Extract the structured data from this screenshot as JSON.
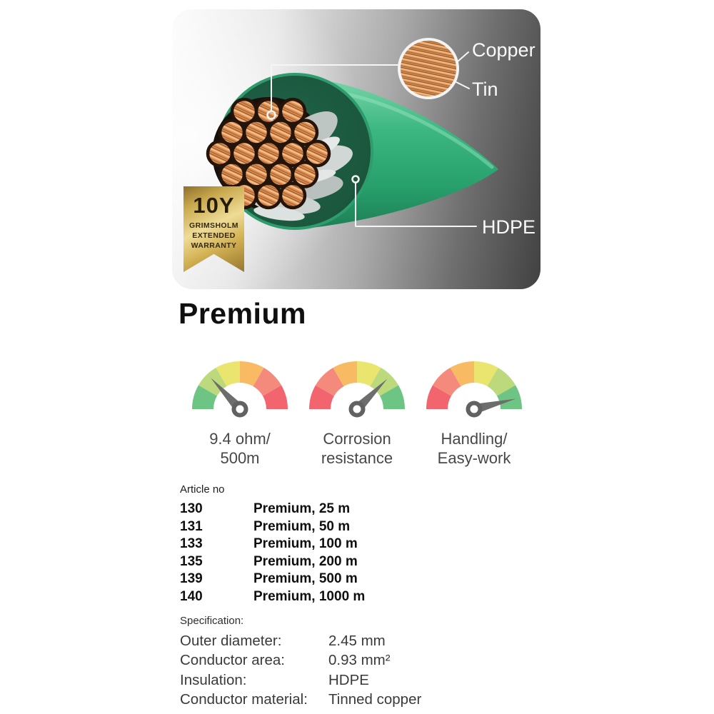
{
  "hero_card": {
    "callouts": {
      "copper": "Copper",
      "tin": "Tin",
      "hdpe": "HDPE"
    },
    "badge": {
      "years": "10Y",
      "brand": "GRIMSHOLM",
      "line2": "EXTENDED",
      "line3": "WARRANTY"
    },
    "colors": {
      "cable_green": "#35b57f",
      "cable_dark_green": "#1d5c41",
      "copper": "#e09255",
      "badge_gold": "#d3b254"
    }
  },
  "product_title": "Premium",
  "gauges": {
    "needle_color": "#6d6d6d",
    "items": [
      {
        "label_line1": "9.4 ohm/",
        "label_line2": "500m",
        "angle_deg": 133,
        "colors": [
          "#6ec482",
          "#bcd97c",
          "#eae56f",
          "#f8ba62",
          "#f48a7b",
          "#f3656e"
        ]
      },
      {
        "label_line1": "Corrosion",
        "label_line2": "resistance",
        "angle_deg": 45,
        "colors": [
          "#f3656e",
          "#f48a7b",
          "#f8ba62",
          "#eae56f",
          "#bcd97c",
          "#6ec482"
        ]
      },
      {
        "label_line1": "Handling/",
        "label_line2": "Easy-work",
        "angle_deg": 14,
        "colors": [
          "#f3656e",
          "#f48a7b",
          "#f8ba62",
          "#eae56f",
          "#bcd97c",
          "#6ec482"
        ]
      }
    ]
  },
  "articles": {
    "header": "Article no",
    "rows": [
      {
        "no": "130",
        "name": "Premium, 25 m"
      },
      {
        "no": "131",
        "name": "Premium, 50 m"
      },
      {
        "no": "133",
        "name": "Premium, 100 m"
      },
      {
        "no": "135",
        "name": "Premium, 200 m"
      },
      {
        "no": "139",
        "name": "Premium, 500 m"
      },
      {
        "no": "140",
        "name": "Premium, 1000 m"
      }
    ]
  },
  "specification": {
    "header": "Specification:",
    "rows": [
      {
        "label": "Outer diameter:",
        "value": "2.45 mm"
      },
      {
        "label": "Conductor area:",
        "value": "0.93 mm²"
      },
      {
        "label": "Insulation:",
        "value": "HDPE"
      },
      {
        "label": "Conductor material:",
        "value": "Tinned copper"
      }
    ]
  }
}
